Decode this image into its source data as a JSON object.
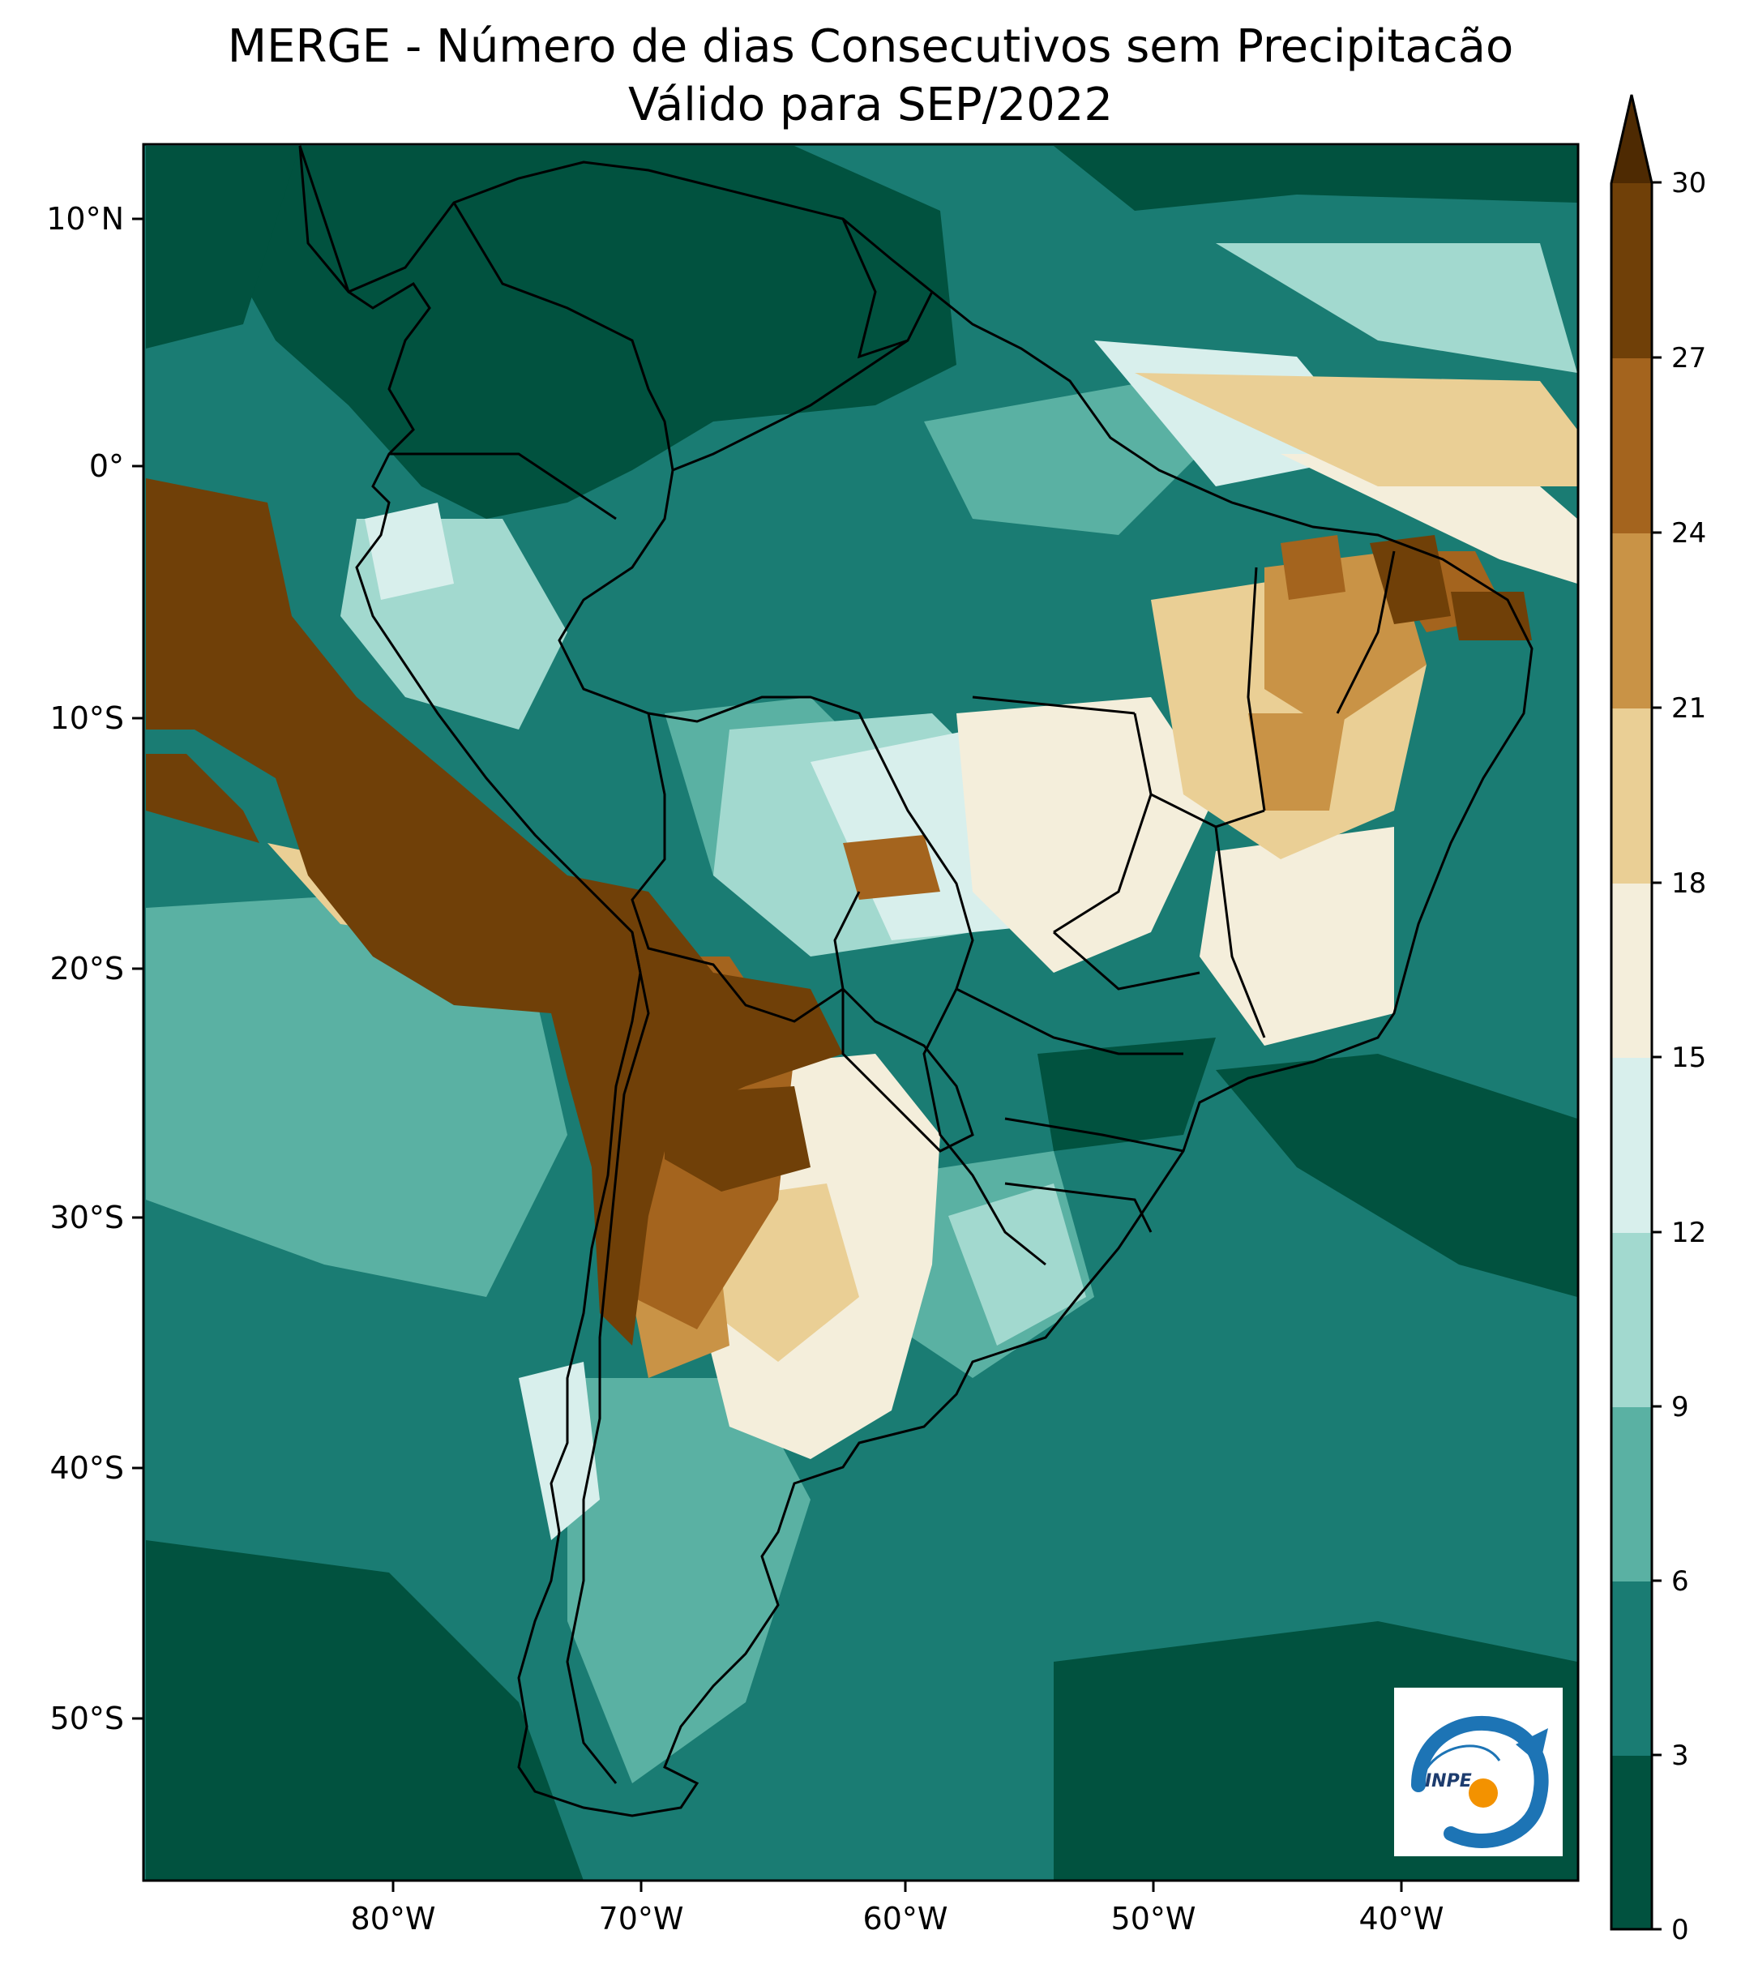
{
  "title": {
    "line1": "MERGE - Número de dias Consecutivos sem Precipitacão",
    "line2": "Válido para SEP/2022"
  },
  "axes": {
    "lon_ticks": [
      "80°W",
      "70°W",
      "60°W",
      "50°W",
      "40°W"
    ],
    "lat_ticks": [
      "10°N",
      "0°",
      "10°S",
      "20°S",
      "30°S",
      "40°S",
      "50°S"
    ]
  },
  "colorbar": {
    "levels": [
      "0",
      "3",
      "6",
      "9",
      "12",
      "15",
      "18",
      "21",
      "24",
      "27",
      "30"
    ],
    "colors": [
      "#01523f",
      "#1a7c73",
      "#5ab1a3",
      "#a2d9cf",
      "#d8efec",
      "#f4eedb",
      "#eacf95",
      "#c99346",
      "#a4641e",
      "#704008"
    ],
    "extend": "max"
  },
  "map": {
    "background_color": "#1a7c73",
    "lon_range": [
      -90,
      -32
    ],
    "lat_range": [
      -57,
      13
    ],
    "borders_color": "#000000"
  },
  "logo": {
    "text": "INPE",
    "icon": "inpe-logo-icon"
  }
}
